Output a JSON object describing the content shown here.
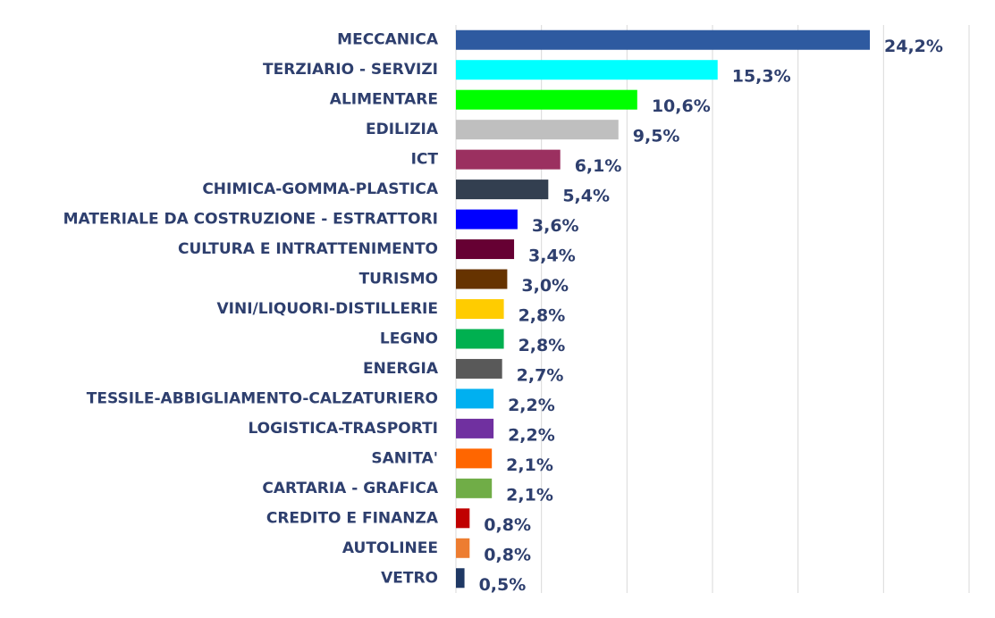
{
  "chart_data": {
    "type": "hbar",
    "categories": [
      "MECCANICA",
      "TERZIARIO - SERVIZI",
      "ALIMENTARE",
      "EDILIZIA",
      "ICT",
      "CHIMICA-GOMMA-PLASTICA",
      "MATERIALE DA COSTRUZIONE - ESTRATTORI",
      "CULTURA E INTRATTENIMENTO",
      "TURISMO",
      "VINI/LIQUORI-DISTILLERIE",
      "LEGNO",
      "ENERGIA",
      "TESSILE-ABBIGLIAMENTO-CALZATURIERO",
      "LOGISTICA-TRASPORTI",
      "SANITA'",
      "CARTARIA - GRAFICA",
      "CREDITO E FINANZA",
      "AUTOLINEE",
      "VETRO"
    ],
    "values": [
      24.2,
      15.3,
      10.6,
      9.5,
      6.1,
      5.4,
      3.6,
      3.4,
      3.0,
      2.8,
      2.8,
      2.7,
      2.2,
      2.2,
      2.1,
      2.1,
      0.8,
      0.8,
      0.5
    ],
    "value_labels": [
      "24,2%",
      "15,3%",
      "10,6%",
      "9,5%",
      "6,1%",
      "5,4%",
      "3,6%",
      "3,4%",
      "3,0%",
      "2,8%",
      "2,8%",
      "2,7%",
      "2,2%",
      "2,2%",
      "2,1%",
      "2,1%",
      "0,8%",
      "0,8%",
      "0,5%"
    ],
    "colors": [
      "#2e5aa0",
      "#00ffff",
      "#00ff00",
      "#bfbfbf",
      "#9b3060",
      "#333f50",
      "#0000ff",
      "#660033",
      "#663300",
      "#ffcc00",
      "#00b050",
      "#595959",
      "#00b0f0",
      "#7030a0",
      "#ff6600",
      "#70ad47",
      "#c00000",
      "#ed7d31",
      "#1f3864"
    ],
    "xlim": [
      0,
      30
    ],
    "xticks": [
      0,
      5,
      10,
      15,
      20,
      25,
      30
    ],
    "grid": true
  }
}
